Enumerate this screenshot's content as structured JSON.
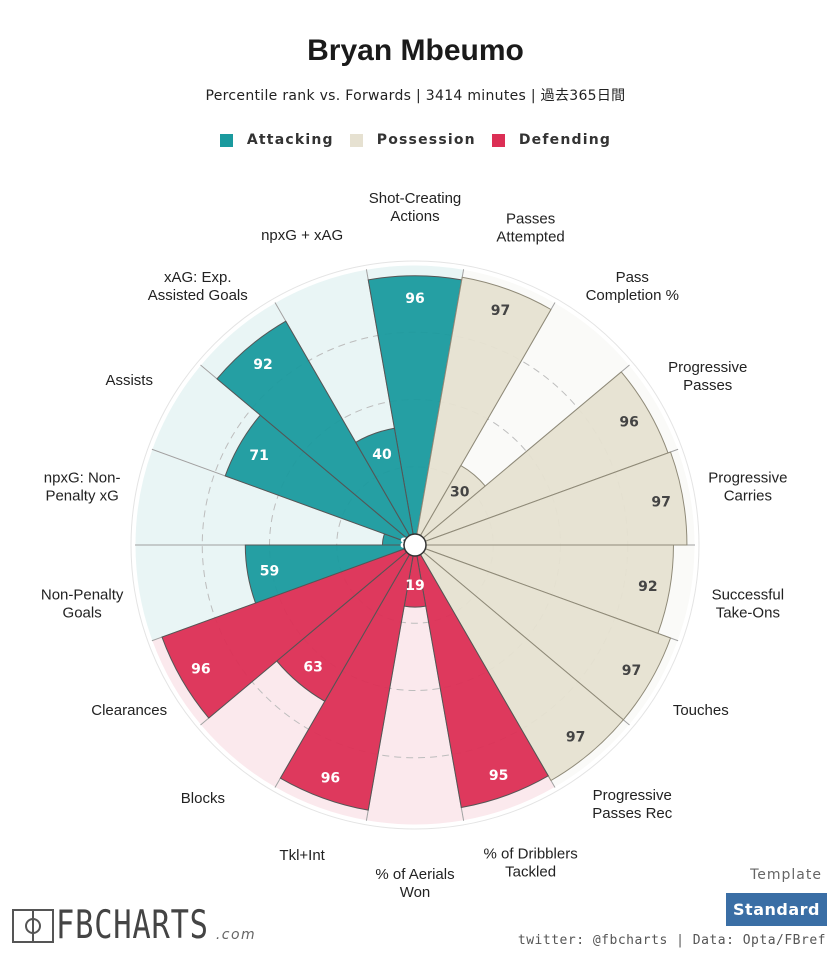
{
  "header": {
    "title": "Bryan Mbeumo",
    "subtitle": "Percentile rank vs. Forwards | 3414 minutes | 過去365日間"
  },
  "legend": [
    {
      "label": "Attacking",
      "color": "#1a9a9e"
    },
    {
      "label": "Possession",
      "color": "#e6e1d1"
    },
    {
      "label": "Defending",
      "color": "#dc2f55"
    }
  ],
  "chart_data": {
    "type": "polar-bar",
    "title": "Bryan Mbeumo",
    "subtitle": "Percentile rank vs. Forwards | 3414 minutes | 過去365日間",
    "range": [
      0,
      100
    ],
    "grid": true,
    "legend_position": "top-center",
    "categories": [
      "Shot-Creating Actions",
      "Passes Attempted",
      "Pass Completion %",
      "Progressive Passes",
      "Progressive Carries",
      "Successful Take-Ons",
      "Touches",
      "Progressive Passes Rec",
      "% of Dribblers Tackled",
      "% of Aerials Won",
      "Tkl+Int",
      "Blocks",
      "Clearances",
      "Non-Penalty Goals",
      "npxG: Non-Penalty xG",
      "Assists",
      "xAG: Exp. Assisted Goals",
      "npxG + xAG"
    ],
    "values": [
      96,
      97,
      30,
      96,
      97,
      92,
      97,
      97,
      95,
      19,
      96,
      63,
      96,
      59,
      8,
      71,
      92,
      40
    ],
    "groups": [
      "Attacking",
      "Possession",
      "Possession",
      "Possession",
      "Possession",
      "Possession",
      "Possession",
      "Possession",
      "Defending",
      "Defending",
      "Defending",
      "Defending",
      "Defending",
      "Attacking",
      "Attacking",
      "Attacking",
      "Attacking",
      "Attacking"
    ],
    "series": [
      {
        "name": "Attacking",
        "color": "#1a9a9e",
        "background": "#e9f5f5"
      },
      {
        "name": "Possession",
        "color": "#e6e1d1",
        "background": "#fafaf8"
      },
      {
        "name": "Defending",
        "color": "#dc2f55",
        "background": "#fbe9ed"
      }
    ]
  },
  "footer": {
    "template_label": "Template",
    "template_value": "Standard",
    "credits": "twitter: @fbcharts | Data: Opta/FBref",
    "logo_text": "FBCHARTS",
    "logo_suffix": ".com"
  }
}
